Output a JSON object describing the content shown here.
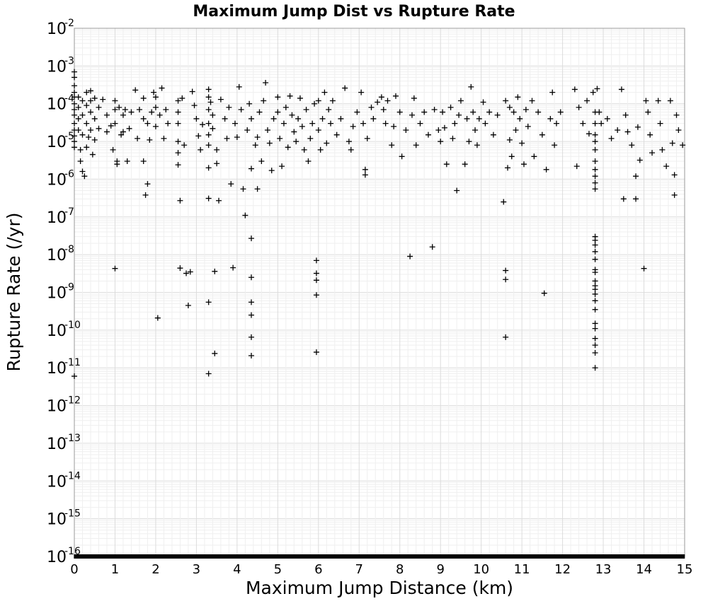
{
  "chart_data": {
    "type": "scatter",
    "title": "Maximum Jump Dist vs Rupture Rate",
    "xlabel": "Maximum Jump Distance (km)",
    "ylabel": "Rupture Rate (/yr)",
    "xlim": [
      0,
      15
    ],
    "ylim": [
      1e-16,
      0.01
    ],
    "yscale": "log",
    "grid": true,
    "marker": "+",
    "marker_color": "#000000",
    "x_ticks": [
      "0",
      "1",
      "2",
      "3",
      "4",
      "5",
      "6",
      "7",
      "8",
      "9",
      "10",
      "11",
      "12",
      "13",
      "14",
      "15"
    ],
    "y_ticks": [
      {
        "base": "10",
        "exp": "-2"
      },
      {
        "base": "10",
        "exp": "-3"
      },
      {
        "base": "10",
        "exp": "-4"
      },
      {
        "base": "10",
        "exp": "-5"
      },
      {
        "base": "10",
        "exp": "-6"
      },
      {
        "base": "10",
        "exp": "-7"
      },
      {
        "base": "10",
        "exp": "-8"
      },
      {
        "base": "10",
        "exp": "-9"
      },
      {
        "base": "10",
        "exp": "-10"
      },
      {
        "base": "10",
        "exp": "-11"
      },
      {
        "base": "10",
        "exp": "-12"
      },
      {
        "base": "10",
        "exp": "-13"
      },
      {
        "base": "10",
        "exp": "-14"
      },
      {
        "base": "10",
        "exp": "-15"
      },
      {
        "base": "10",
        "exp": "-16"
      }
    ],
    "points": [
      [
        0.0,
        0.0007
      ],
      [
        0.0,
        0.0005
      ],
      [
        0.0,
        0.0003
      ],
      [
        0.0,
        0.0002
      ],
      [
        0.0,
        0.00015
      ],
      [
        0.0,
        0.0001
      ],
      [
        0.0,
        7e-05
      ],
      [
        0.0,
        5e-05
      ],
      [
        0.0,
        3e-05
      ],
      [
        0.0,
        2e-05
      ],
      [
        0.0,
        1.4e-05
      ],
      [
        0.0,
        1e-05
      ],
      [
        0.0,
        7e-06
      ],
      [
        0.0,
        6e-12
      ],
      [
        0.1,
        0.00015
      ],
      [
        0.1,
        8e-05
      ],
      [
        0.1,
        4e-05
      ],
      [
        0.1,
        2e-05
      ],
      [
        0.15,
        6e-06
      ],
      [
        0.15,
        3e-06
      ],
      [
        0.2,
        0.00012
      ],
      [
        0.2,
        5e-05
      ],
      [
        0.2,
        1.5e-05
      ],
      [
        0.2,
        1.6e-06
      ],
      [
        0.25,
        1.2e-06
      ],
      [
        0.3,
        0.0002
      ],
      [
        0.3,
        9e-05
      ],
      [
        0.3,
        3e-05
      ],
      [
        0.3,
        7e-06
      ],
      [
        0.35,
        1.3e-05
      ],
      [
        0.4,
        0.00022
      ],
      [
        0.4,
        0.00012
      ],
      [
        0.4,
        6e-05
      ],
      [
        0.4,
        2e-05
      ],
      [
        0.45,
        4.5e-06
      ],
      [
        0.5,
        0.00014
      ],
      [
        0.5,
        4e-05
      ],
      [
        0.5,
        1.1e-05
      ],
      [
        0.6,
        8e-05
      ],
      [
        0.6,
        2.2e-05
      ],
      [
        0.7,
        0.00013
      ],
      [
        0.8,
        5e-05
      ],
      [
        0.8,
        1.8e-05
      ],
      [
        0.9,
        2.6e-05
      ],
      [
        0.95,
        6e-06
      ],
      [
        1.0,
        0.00012
      ],
      [
        1.0,
        7e-05
      ],
      [
        1.0,
        3e-05
      ],
      [
        1.05,
        3e-06
      ],
      [
        1.05,
        2.5e-06
      ],
      [
        1.0,
        4.3e-09
      ],
      [
        1.1,
        8e-05
      ],
      [
        1.15,
        1.5e-05
      ],
      [
        1.2,
        5e-05
      ],
      [
        1.2,
        1.8e-05
      ],
      [
        1.25,
        7e-05
      ],
      [
        1.3,
        3e-06
      ],
      [
        1.35,
        2.2e-05
      ],
      [
        1.4,
        6e-05
      ],
      [
        1.5,
        0.00023
      ],
      [
        1.55,
        1.2e-05
      ],
      [
        1.6,
        7e-05
      ],
      [
        1.7,
        0.00014
      ],
      [
        1.7,
        4e-05
      ],
      [
        1.7,
        3e-06
      ],
      [
        1.75,
        3.8e-07
      ],
      [
        1.8,
        7.5e-07
      ],
      [
        1.8,
        3e-05
      ],
      [
        1.85,
        1.1e-05
      ],
      [
        1.9,
        6e-05
      ],
      [
        1.95,
        0.0002
      ],
      [
        2.0,
        0.00015
      ],
      [
        2.0,
        8e-05
      ],
      [
        2.0,
        2.5e-05
      ],
      [
        2.05,
        2.1e-10
      ],
      [
        2.1,
        5e-05
      ],
      [
        2.15,
        0.00026
      ],
      [
        2.2,
        1.2e-05
      ],
      [
        2.25,
        7e-05
      ],
      [
        2.3,
        3e-05
      ],
      [
        2.55,
        0.00012
      ],
      [
        2.55,
        6e-05
      ],
      [
        2.55,
        3e-05
      ],
      [
        2.55,
        1e-05
      ],
      [
        2.55,
        5e-06
      ],
      [
        2.55,
        2.4e-06
      ],
      [
        2.6,
        2.7e-07
      ],
      [
        2.6,
        4.4e-09
      ],
      [
        2.65,
        0.00014
      ],
      [
        2.7,
        8e-06
      ],
      [
        2.75,
        3.2e-09
      ],
      [
        2.8,
        4.5e-10
      ],
      [
        2.85,
        3.5e-09
      ],
      [
        2.9,
        0.00021
      ],
      [
        2.95,
        9e-05
      ],
      [
        3.0,
        4e-05
      ],
      [
        3.05,
        1.4e-05
      ],
      [
        3.1,
        6e-06
      ],
      [
        3.15,
        2.8e-05
      ],
      [
        3.3,
        0.00024
      ],
      [
        3.3,
        0.00015
      ],
      [
        3.3,
        7e-05
      ],
      [
        3.3,
        3e-05
      ],
      [
        3.3,
        1.5e-05
      ],
      [
        3.3,
        8e-06
      ],
      [
        3.3,
        2e-06
      ],
      [
        3.3,
        3.1e-07
      ],
      [
        3.3,
        5.5e-10
      ],
      [
        3.3,
        7e-12
      ],
      [
        3.35,
        0.00011
      ],
      [
        3.4,
        5e-05
      ],
      [
        3.4,
        2.2e-05
      ],
      [
        3.45,
        3.6e-09
      ],
      [
        3.45,
        2.4e-11
      ],
      [
        3.5,
        6e-06
      ],
      [
        3.5,
        2.6e-06
      ],
      [
        3.55,
        2.7e-07
      ],
      [
        3.6,
        0.00013
      ],
      [
        3.7,
        4e-05
      ],
      [
        3.75,
        1.2e-05
      ],
      [
        3.8,
        8e-05
      ],
      [
        3.85,
        7.5e-07
      ],
      [
        3.9,
        4.5e-09
      ],
      [
        3.95,
        3e-05
      ],
      [
        4.0,
        1.3e-05
      ],
      [
        4.05,
        0.00028
      ],
      [
        4.1,
        7e-05
      ],
      [
        4.15,
        5.5e-07
      ],
      [
        4.2,
        1.1e-07
      ],
      [
        4.25,
        2e-05
      ],
      [
        4.3,
        0.0001
      ],
      [
        4.35,
        4e-05
      ],
      [
        4.35,
        1.9e-06
      ],
      [
        4.35,
        2.7e-08
      ],
      [
        4.35,
        2.5e-09
      ],
      [
        4.35,
        5.5e-10
      ],
      [
        4.35,
        2.5e-10
      ],
      [
        4.35,
        6.5e-11
      ],
      [
        4.35,
        2.1e-11
      ],
      [
        4.45,
        8e-06
      ],
      [
        4.5,
        1.3e-05
      ],
      [
        4.5,
        5.5e-07
      ],
      [
        4.55,
        6e-05
      ],
      [
        4.6,
        3e-06
      ],
      [
        4.65,
        0.00012
      ],
      [
        4.7,
        0.00036
      ],
      [
        4.75,
        2e-05
      ],
      [
        4.8,
        9e-06
      ],
      [
        4.85,
        1.7e-06
      ],
      [
        4.9,
        4e-05
      ],
      [
        5.0,
        0.00015
      ],
      [
        5.0,
        6e-05
      ],
      [
        5.05,
        1.2e-05
      ],
      [
        5.1,
        2.2e-06
      ],
      [
        5.15,
        3e-05
      ],
      [
        5.2,
        8e-05
      ],
      [
        5.25,
        7e-06
      ],
      [
        5.3,
        0.00016
      ],
      [
        5.35,
        5e-05
      ],
      [
        5.4,
        1.8e-05
      ],
      [
        5.45,
        1e-05
      ],
      [
        5.5,
        4e-05
      ],
      [
        5.55,
        0.00014
      ],
      [
        5.6,
        2.5e-05
      ],
      [
        5.65,
        6e-06
      ],
      [
        5.7,
        7e-05
      ],
      [
        5.75,
        3e-06
      ],
      [
        5.8,
        1.2e-05
      ],
      [
        5.85,
        3e-05
      ],
      [
        5.9,
        0.0001
      ],
      [
        5.95,
        7e-09
      ],
      [
        5.95,
        3.2e-09
      ],
      [
        5.95,
        2.1e-09
      ],
      [
        5.95,
        8.5e-10
      ],
      [
        5.95,
        2.6e-11
      ],
      [
        6.0,
        0.00012
      ],
      [
        6.0,
        2e-05
      ],
      [
        6.05,
        6e-06
      ],
      [
        6.1,
        4e-05
      ],
      [
        6.15,
        0.0002
      ],
      [
        6.2,
        9e-06
      ],
      [
        6.25,
        7e-05
      ],
      [
        6.3,
        3e-05
      ],
      [
        6.35,
        0.00012
      ],
      [
        6.45,
        1.5e-05
      ],
      [
        6.55,
        4e-05
      ],
      [
        6.65,
        0.00026
      ],
      [
        6.75,
        1e-05
      ],
      [
        6.8,
        6e-06
      ],
      [
        6.85,
        2.5e-05
      ],
      [
        6.95,
        6e-05
      ],
      [
        7.05,
        0.0002
      ],
      [
        7.1,
        3e-05
      ],
      [
        7.15,
        1.8e-06
      ],
      [
        7.15,
        1.3e-06
      ],
      [
        7.2,
        1.2e-05
      ],
      [
        7.3,
        8e-05
      ],
      [
        7.35,
        4e-05
      ],
      [
        7.45,
        0.00011
      ],
      [
        7.55,
        0.00015
      ],
      [
        7.6,
        7e-05
      ],
      [
        7.65,
        3e-05
      ],
      [
        7.7,
        0.00012
      ],
      [
        7.8,
        8e-06
      ],
      [
        7.85,
        2.5e-05
      ],
      [
        7.9,
        0.00016
      ],
      [
        8.0,
        6e-05
      ],
      [
        8.05,
        4e-06
      ],
      [
        8.15,
        2e-05
      ],
      [
        8.25,
        9e-09
      ],
      [
        8.3,
        5e-05
      ],
      [
        8.35,
        0.00014
      ],
      [
        8.4,
        8e-06
      ],
      [
        8.5,
        3e-05
      ],
      [
        8.6,
        6e-05
      ],
      [
        8.7,
        1.5e-05
      ],
      [
        8.8,
        1.6e-08
      ],
      [
        8.85,
        7e-05
      ],
      [
        8.95,
        2e-05
      ],
      [
        9.0,
        1e-05
      ],
      [
        9.05,
        6e-05
      ],
      [
        9.1,
        2.3e-05
      ],
      [
        9.15,
        2.5e-06
      ],
      [
        9.25,
        8e-05
      ],
      [
        9.3,
        1.2e-05
      ],
      [
        9.35,
        3e-05
      ],
      [
        9.4,
        5e-07
      ],
      [
        9.45,
        5e-05
      ],
      [
        9.5,
        0.00012
      ],
      [
        9.6,
        2.5e-06
      ],
      [
        9.65,
        4e-05
      ],
      [
        9.7,
        1e-05
      ],
      [
        9.75,
        0.00028
      ],
      [
        9.8,
        6e-05
      ],
      [
        9.85,
        2e-05
      ],
      [
        9.9,
        8e-06
      ],
      [
        9.95,
        4e-05
      ],
      [
        10.05,
        0.00011
      ],
      [
        10.1,
        3e-05
      ],
      [
        10.2,
        6e-05
      ],
      [
        10.3,
        1.5e-05
      ],
      [
        10.4,
        5e-05
      ],
      [
        10.55,
        2.5e-07
      ],
      [
        10.6,
        0.00012
      ],
      [
        10.6,
        3.8e-09
      ],
      [
        10.6,
        2.2e-09
      ],
      [
        10.6,
        6.5e-11
      ],
      [
        10.65,
        2e-06
      ],
      [
        10.7,
        8e-05
      ],
      [
        10.7,
        1.1e-05
      ],
      [
        10.75,
        4e-06
      ],
      [
        10.8,
        6e-05
      ],
      [
        10.85,
        2e-05
      ],
      [
        10.9,
        0.00015
      ],
      [
        10.95,
        4e-05
      ],
      [
        11.0,
        9e-06
      ],
      [
        11.05,
        2.5e-06
      ],
      [
        11.1,
        7e-05
      ],
      [
        11.15,
        2.5e-05
      ],
      [
        11.25,
        0.00012
      ],
      [
        11.3,
        4e-06
      ],
      [
        11.4,
        6e-05
      ],
      [
        11.5,
        1.5e-05
      ],
      [
        11.55,
        9.5e-10
      ],
      [
        11.6,
        1.8e-06
      ],
      [
        11.7,
        4e-05
      ],
      [
        11.75,
        0.0002
      ],
      [
        11.8,
        8e-06
      ],
      [
        11.85,
        3e-05
      ],
      [
        11.95,
        6e-05
      ],
      [
        12.3,
        0.00024
      ],
      [
        12.35,
        2.2e-06
      ],
      [
        12.4,
        8e-05
      ],
      [
        12.5,
        3e-05
      ],
      [
        12.6,
        0.00012
      ],
      [
        12.65,
        1.6e-05
      ],
      [
        12.75,
        0.0002
      ],
      [
        12.8,
        6e-05
      ],
      [
        12.8,
        3e-05
      ],
      [
        12.8,
        1.5e-05
      ],
      [
        12.8,
        1e-05
      ],
      [
        12.8,
        6e-06
      ],
      [
        12.8,
        3e-06
      ],
      [
        12.8,
        1.8e-06
      ],
      [
        12.8,
        1.2e-06
      ],
      [
        12.8,
        8e-07
      ],
      [
        12.8,
        5.5e-07
      ],
      [
        12.8,
        3e-08
      ],
      [
        12.8,
        2.4e-08
      ],
      [
        12.8,
        1.8e-08
      ],
      [
        12.8,
        1.2e-08
      ],
      [
        12.8,
        7.5e-09
      ],
      [
        12.8,
        4e-09
      ],
      [
        12.8,
        3.4e-09
      ],
      [
        12.8,
        2e-09
      ],
      [
        12.8,
        1.5e-09
      ],
      [
        12.8,
        1.2e-09
      ],
      [
        12.8,
        9e-10
      ],
      [
        12.8,
        6e-10
      ],
      [
        12.8,
        3.5e-10
      ],
      [
        12.8,
        1.5e-10
      ],
      [
        12.8,
        1.1e-10
      ],
      [
        12.8,
        6e-11
      ],
      [
        12.8,
        4e-11
      ],
      [
        12.8,
        2.5e-11
      ],
      [
        12.8,
        1e-11
      ],
      [
        12.85,
        0.00025
      ],
      [
        12.9,
        6e-05
      ],
      [
        12.95,
        3e-05
      ],
      [
        13.1,
        4e-05
      ],
      [
        13.2,
        1.2e-05
      ],
      [
        13.35,
        2e-05
      ],
      [
        13.45,
        0.00024
      ],
      [
        13.5,
        3e-07
      ],
      [
        13.55,
        5e-05
      ],
      [
        13.6,
        1.8e-05
      ],
      [
        13.7,
        8e-06
      ],
      [
        13.8,
        3e-07
      ],
      [
        13.8,
        1.2e-06
      ],
      [
        13.85,
        2.4e-05
      ],
      [
        13.9,
        3.2e-06
      ],
      [
        14.0,
        4.3e-09
      ],
      [
        14.05,
        0.00012
      ],
      [
        14.1,
        6e-05
      ],
      [
        14.15,
        1.5e-05
      ],
      [
        14.2,
        5e-06
      ],
      [
        14.35,
        0.00012
      ],
      [
        14.4,
        3e-05
      ],
      [
        14.45,
        6e-06
      ],
      [
        14.55,
        2.2e-06
      ],
      [
        14.65,
        0.00012
      ],
      [
        14.7,
        9e-06
      ],
      [
        14.75,
        1.3e-06
      ],
      [
        14.75,
        3.8e-07
      ],
      [
        14.8,
        5e-05
      ],
      [
        14.85,
        2e-05
      ],
      [
        14.95,
        8e-06
      ]
    ]
  }
}
